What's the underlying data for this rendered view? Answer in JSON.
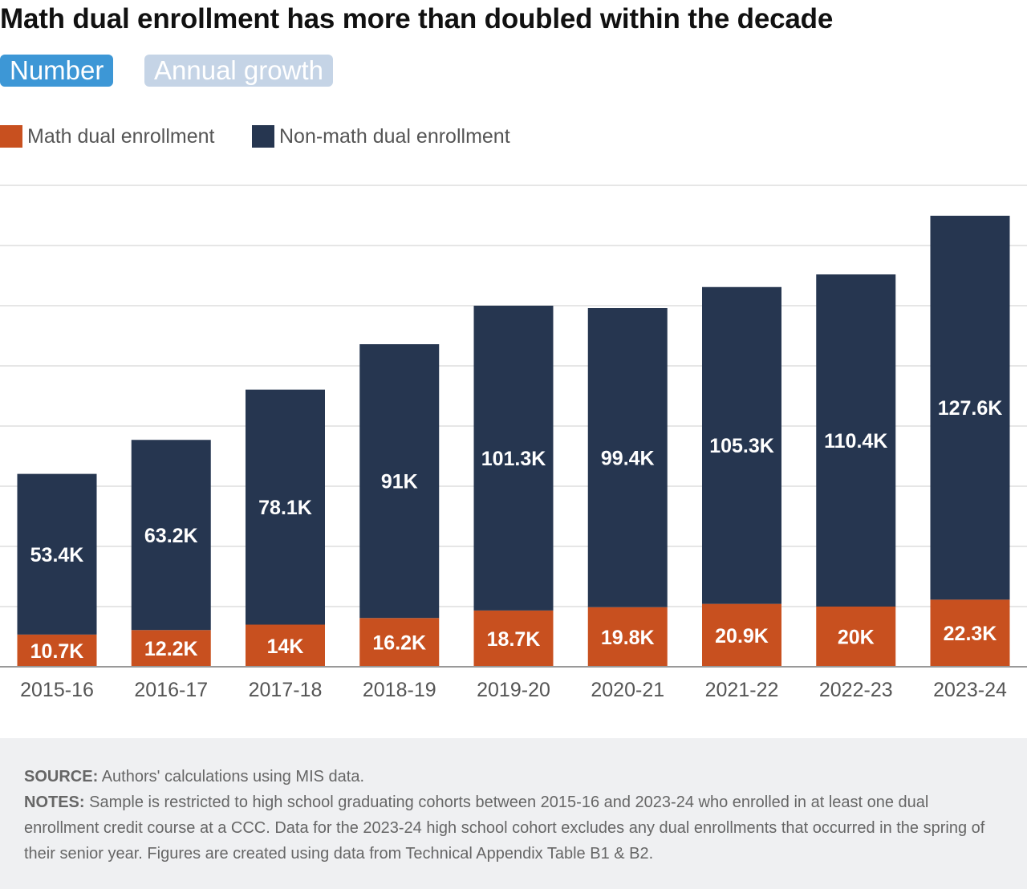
{
  "title": "Math dual enrollment has more than doubled within the decade",
  "toggles": {
    "number": "Number",
    "growth": "Annual growth",
    "active": "Number"
  },
  "legend": [
    {
      "label": "Math dual enrollment",
      "color": "#c8501f"
    },
    {
      "label": "Non-math dual enrollment",
      "color": "#263650"
    }
  ],
  "chart_data": {
    "type": "bar",
    "stacked": true,
    "categories": [
      "2015-16",
      "2016-17",
      "2017-18",
      "2018-19",
      "2019-20",
      "2020-21",
      "2021-22",
      "2022-23",
      "2023-24"
    ],
    "series": [
      {
        "name": "Math dual enrollment",
        "color": "#c8501f",
        "values": [
          10.7,
          12.2,
          14,
          16.2,
          18.7,
          19.8,
          20.9,
          20,
          22.3
        ],
        "labels": [
          "10.7K",
          "12.2K",
          "14K",
          "16.2K",
          "18.7K",
          "19.8K",
          "20.9K",
          "20K",
          "22.3K"
        ]
      },
      {
        "name": "Non-math dual enrollment",
        "color": "#263650",
        "values": [
          53.4,
          63.2,
          78.1,
          91,
          101.3,
          99.4,
          105.3,
          110.4,
          127.6
        ],
        "labels": [
          "53.4K",
          "63.2K",
          "78.1K",
          "91K",
          "101.3K",
          "99.4K",
          "105.3K",
          "110.4K",
          "127.6K"
        ]
      }
    ],
    "ylim": [
      0,
      160
    ],
    "unit": "thousands",
    "grid": true,
    "legend_position": "top-left"
  },
  "footer": {
    "source_label": "SOURCE:",
    "source_text": "Authors' calculations using MIS data.",
    "notes_label": "NOTES:",
    "notes_text": "Sample is restricted to high school graduating cohorts between 2015-16 and 2023-24 who enrolled in at least one dual enrollment credit course at a CCC. Data for the 2023-24 high school cohort excludes any dual enrollments that occurred in the spring of their senior year. Figures are created using data from Technical Appendix Table B1 & B2."
  }
}
